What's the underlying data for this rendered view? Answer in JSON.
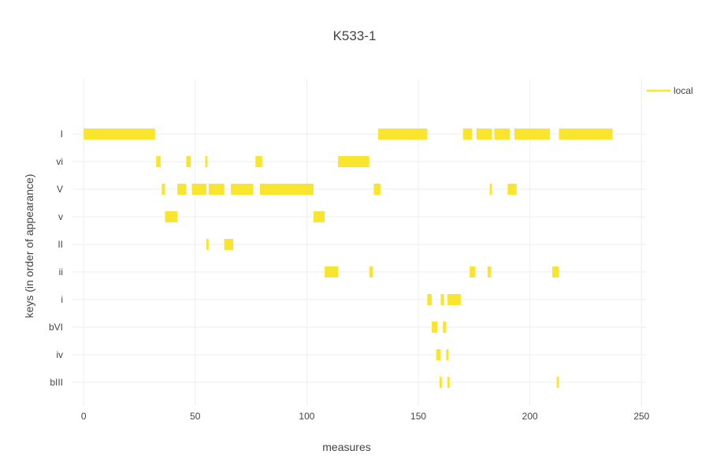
{
  "chart_data": {
    "type": "bar",
    "orientation": "horizontal-segments",
    "title": "K533-1",
    "xlabel": "measures",
    "ylabel": "keys (in order of appearance)",
    "xlim": [
      -5,
      252
    ],
    "xticks": [
      0,
      50,
      100,
      150,
      200,
      250
    ],
    "categories": [
      "I",
      "vi",
      "V",
      "v",
      "II",
      "ii",
      "i",
      "bVI",
      "iv",
      "bIII"
    ],
    "grid": true,
    "legend": {
      "position": "top-right",
      "entries": [
        "local"
      ]
    },
    "series": [
      {
        "name": "local",
        "color": "#f9e52e",
        "segments": [
          {
            "key": "I",
            "start": 0,
            "end": 32
          },
          {
            "key": "I",
            "start": 132,
            "end": 154
          },
          {
            "key": "I",
            "start": 170,
            "end": 174
          },
          {
            "key": "I",
            "start": 176,
            "end": 183
          },
          {
            "key": "I",
            "start": 184,
            "end": 191
          },
          {
            "key": "I",
            "start": 193,
            "end": 209
          },
          {
            "key": "I",
            "start": 213,
            "end": 237
          },
          {
            "key": "vi",
            "start": 32.5,
            "end": 34.5
          },
          {
            "key": "vi",
            "start": 46,
            "end": 48
          },
          {
            "key": "vi",
            "start": 54.5,
            "end": 55.5
          },
          {
            "key": "vi",
            "start": 77,
            "end": 80
          },
          {
            "key": "vi",
            "start": 114,
            "end": 128
          },
          {
            "key": "V",
            "start": 35,
            "end": 36.5
          },
          {
            "key": "V",
            "start": 42,
            "end": 46
          },
          {
            "key": "V",
            "start": 48.5,
            "end": 55
          },
          {
            "key": "V",
            "start": 56,
            "end": 63
          },
          {
            "key": "V",
            "start": 66,
            "end": 76
          },
          {
            "key": "V",
            "start": 79,
            "end": 103
          },
          {
            "key": "V",
            "start": 130,
            "end": 133
          },
          {
            "key": "V",
            "start": 182,
            "end": 183
          },
          {
            "key": "V",
            "start": 190,
            "end": 194
          },
          {
            "key": "v",
            "start": 36.5,
            "end": 42
          },
          {
            "key": "v",
            "start": 103,
            "end": 108
          },
          {
            "key": "II",
            "start": 55,
            "end": 56
          },
          {
            "key": "II",
            "start": 63,
            "end": 67
          },
          {
            "key": "ii",
            "start": 108,
            "end": 114
          },
          {
            "key": "ii",
            "start": 128,
            "end": 129.5
          },
          {
            "key": "ii",
            "start": 173,
            "end": 175.5
          },
          {
            "key": "ii",
            "start": 181,
            "end": 182.5
          },
          {
            "key": "ii",
            "start": 210,
            "end": 213
          },
          {
            "key": "i",
            "start": 154,
            "end": 156
          },
          {
            "key": "i",
            "start": 160,
            "end": 161.5
          },
          {
            "key": "i",
            "start": 163,
            "end": 169
          },
          {
            "key": "bVI",
            "start": 156,
            "end": 158.5
          },
          {
            "key": "bVI",
            "start": 161,
            "end": 162.5
          },
          {
            "key": "iv",
            "start": 158,
            "end": 160
          },
          {
            "key": "iv",
            "start": 162.5,
            "end": 163.5
          },
          {
            "key": "bIII",
            "start": 159.5,
            "end": 160.5
          },
          {
            "key": "bIII",
            "start": 163,
            "end": 164
          },
          {
            "key": "bIII",
            "start": 212,
            "end": 213
          }
        ]
      }
    ]
  }
}
